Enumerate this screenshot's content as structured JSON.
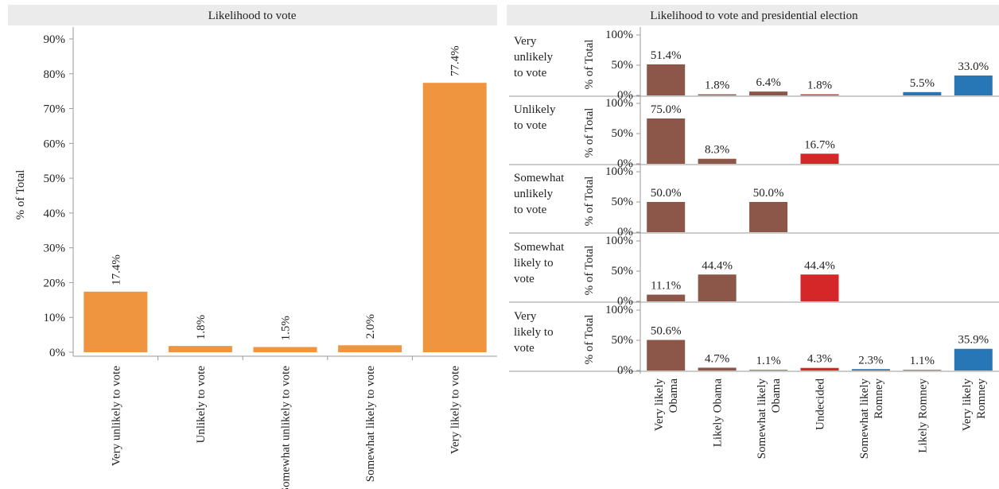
{
  "chart_data": [
    {
      "type": "bar",
      "title": "Likelihood to vote",
      "ylabel": "% of Total",
      "xlabel": "",
      "categories": [
        "Very unlikely to vote",
        "Unlikely to vote",
        "Somewhat unlikely to vote",
        "Somewhat likely to vote",
        "Very likely to vote"
      ],
      "values": [
        17.4,
        1.8,
        1.5,
        2.0,
        77.4
      ],
      "data_labels": [
        "17.4%",
        "1.8%",
        "1.5%",
        "2.0%",
        "77.4%"
      ],
      "yticks": [
        0,
        10,
        20,
        30,
        40,
        50,
        60,
        70,
        80,
        90
      ],
      "ytick_labels": [
        "0%",
        "10%",
        "20%",
        "30%",
        "40%",
        "50%",
        "60%",
        "70%",
        "80%",
        "90%"
      ],
      "ylim": [
        0,
        90
      ],
      "grid": false,
      "bar_color": "#f0953f"
    },
    {
      "type": "bar",
      "title": "Likelihood to vote and presidential election",
      "ylabel": "% of Total",
      "categories": [
        "Very likely Obama",
        "Likely Obama",
        "Somewhat likely Obama",
        "Undecided",
        "Somewhat likely Romney",
        "Likely Romney",
        "Very likely Romney"
      ],
      "category_colors": [
        "#8c5648",
        "#8c5648",
        "#8c5648",
        "#d62728",
        "#2777b6",
        "#2777b6",
        "#2777b6"
      ],
      "yticks": [
        0,
        50,
        100
      ],
      "ytick_labels": [
        "0%",
        "50%",
        "100%"
      ],
      "ylim": [
        0,
        100
      ],
      "rows": [
        {
          "name": "Very unlikely to vote",
          "values": [
            51.4,
            1.8,
            6.4,
            1.8,
            null,
            5.5,
            33.0
          ],
          "labels": [
            "51.4%",
            "1.8%",
            "6.4%",
            "1.8%",
            "",
            "5.5%",
            "33.0%"
          ]
        },
        {
          "name": "Unlikely to vote",
          "values": [
            75.0,
            8.3,
            null,
            16.7,
            null,
            null,
            null
          ],
          "labels": [
            "75.0%",
            "8.3%",
            "",
            "16.7%",
            "",
            "",
            ""
          ]
        },
        {
          "name": "Somewhat unlikely to vote",
          "values": [
            50.0,
            null,
            50.0,
            null,
            null,
            null,
            null
          ],
          "labels": [
            "50.0%",
            "",
            "50.0%",
            "",
            "",
            "",
            ""
          ]
        },
        {
          "name": "Somewhat likely to vote",
          "values": [
            11.1,
            44.4,
            null,
            44.4,
            null,
            null,
            null
          ],
          "labels": [
            "11.1%",
            "44.4%",
            "",
            "44.4%",
            "",
            "",
            ""
          ]
        },
        {
          "name": "Very likely to vote",
          "values": [
            50.6,
            4.7,
            1.1,
            4.3,
            2.3,
            1.1,
            35.9
          ],
          "labels": [
            "50.6%",
            "4.7%",
            "1.1%",
            "4.3%",
            "2.3%",
            "1.1%",
            "35.9%"
          ]
        }
      ]
    }
  ]
}
